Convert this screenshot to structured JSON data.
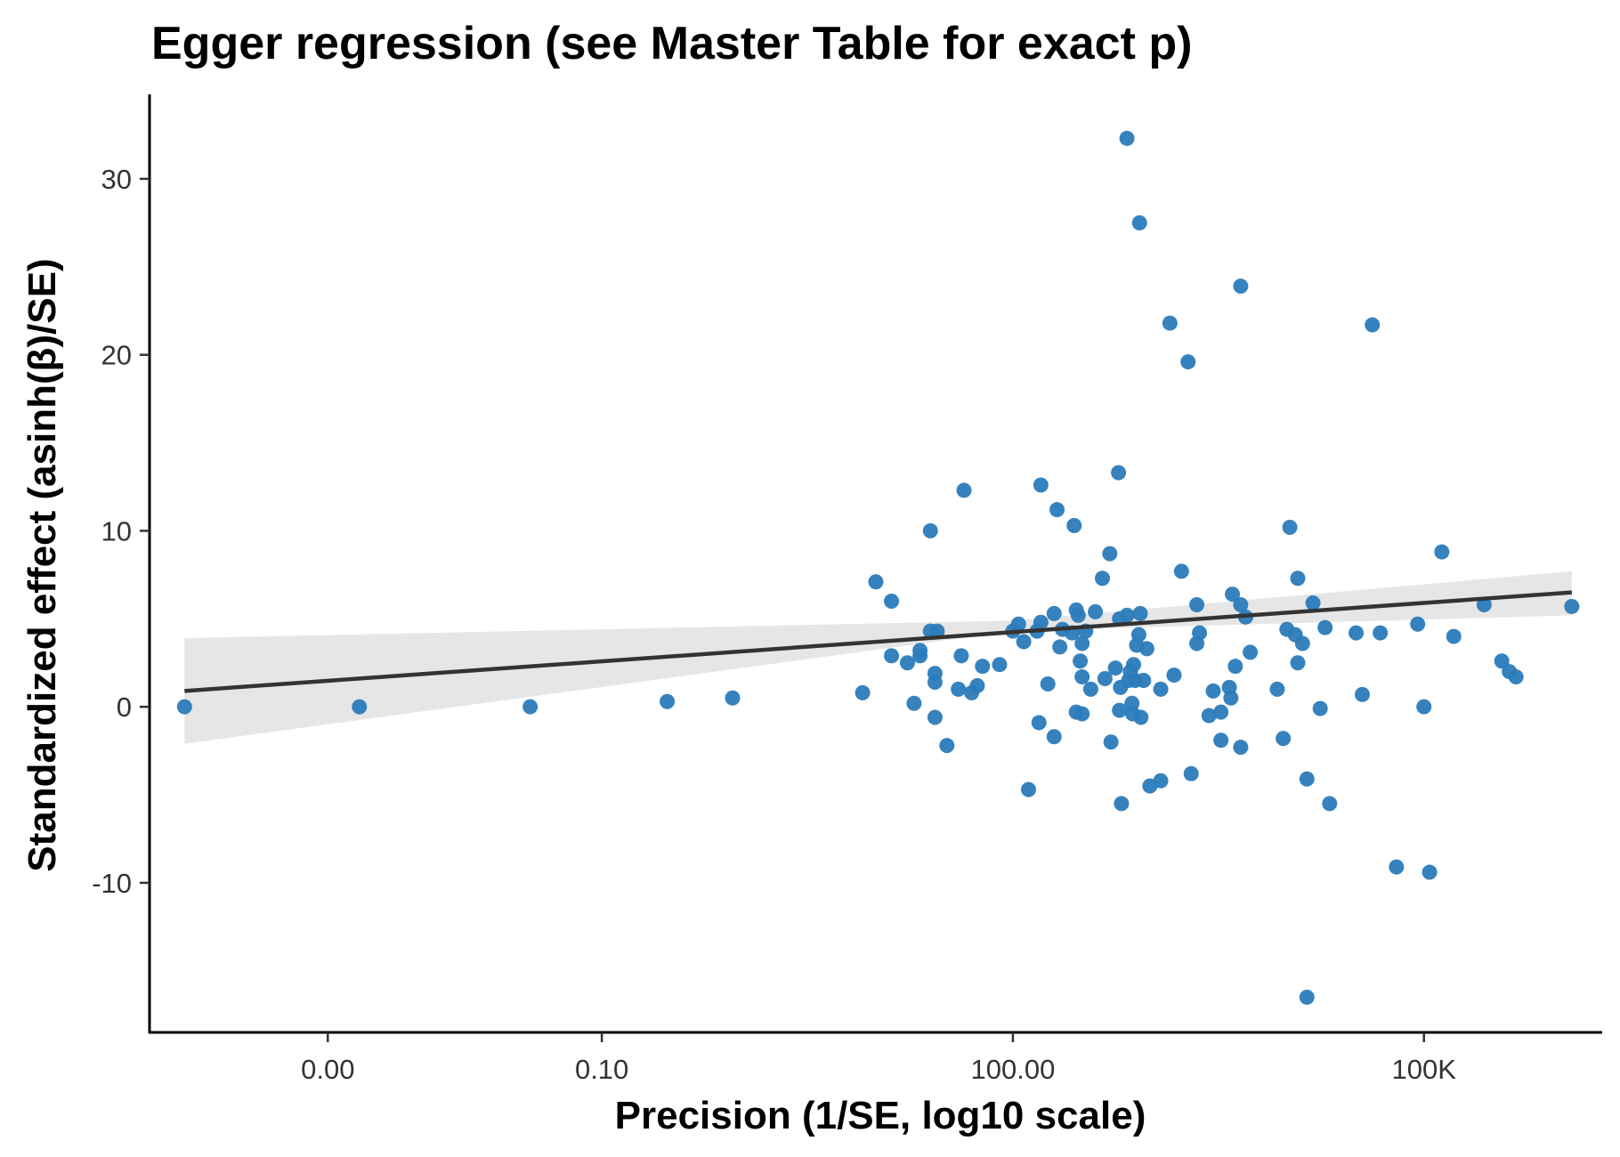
{
  "chart_data": {
    "type": "scatter",
    "title": "Egger regression (see Master Table for exact p)",
    "xlabel": "Precision (1/SE, log10 scale)",
    "ylabel": "Standardized effect (asinh(β)/SE)",
    "x_scale": "log10",
    "xlim": [
      5e-05,
      2000000
    ],
    "ylim": [
      -18.5,
      34.8
    ],
    "x_ticks": [
      {
        "value": 0.001,
        "label": "0.00"
      },
      {
        "value": 0.1,
        "label": "0.10"
      },
      {
        "value": 100,
        "label": "100.00"
      },
      {
        "value": 100000,
        "label": "100K"
      }
    ],
    "y_ticks": [
      {
        "value": 30,
        "label": "30"
      },
      {
        "value": 20,
        "label": "20"
      },
      {
        "value": 10,
        "label": "10"
      },
      {
        "value": 0,
        "label": "0"
      },
      {
        "value": -10,
        "label": "-10"
      }
    ],
    "grid": false,
    "legend": "none",
    "colors": {
      "points": "#2b7bba",
      "fit_line": "#333333",
      "ci_band": "#e6e6e6",
      "axis": "#000000"
    },
    "fit_line": {
      "x": [
        9e-05,
        1200000
      ],
      "y": [
        0.9,
        6.5
      ]
    },
    "ci_band": {
      "x": [
        9e-05,
        100,
        1200000
      ],
      "upper": [
        3.9,
        4.9,
        7.7
      ],
      "lower": [
        -2.1,
        4.3,
        5.2
      ]
    },
    "points": [
      {
        "x": 9e-05,
        "y": 0.0
      },
      {
        "x": 0.0017,
        "y": 0.0
      },
      {
        "x": 0.03,
        "y": 0.0
      },
      {
        "x": 0.3,
        "y": 0.3
      },
      {
        "x": 0.9,
        "y": 0.5
      },
      {
        "x": 8,
        "y": 0.8
      },
      {
        "x": 10,
        "y": 7.1
      },
      {
        "x": 13,
        "y": 6.0
      },
      {
        "x": 13,
        "y": 2.9
      },
      {
        "x": 17,
        "y": 2.5
      },
      {
        "x": 19,
        "y": 0.2
      },
      {
        "x": 21,
        "y": 3.2
      },
      {
        "x": 21,
        "y": 2.9
      },
      {
        "x": 25,
        "y": 10.0
      },
      {
        "x": 25,
        "y": 4.3
      },
      {
        "x": 28,
        "y": 4.3
      },
      {
        "x": 27,
        "y": 1.9
      },
      {
        "x": 27,
        "y": 1.4
      },
      {
        "x": 27,
        "y": -0.6
      },
      {
        "x": 33,
        "y": -2.2
      },
      {
        "x": 40,
        "y": 1.0
      },
      {
        "x": 42,
        "y": 2.9
      },
      {
        "x": 44,
        "y": 12.3
      },
      {
        "x": 50,
        "y": 0.8
      },
      {
        "x": 55,
        "y": 1.2
      },
      {
        "x": 60,
        "y": 2.3
      },
      {
        "x": 80,
        "y": 2.4
      },
      {
        "x": 100,
        "y": 4.3
      },
      {
        "x": 110,
        "y": 4.7
      },
      {
        "x": 120,
        "y": 3.7
      },
      {
        "x": 130,
        "y": -4.7
      },
      {
        "x": 150,
        "y": 4.3
      },
      {
        "x": 160,
        "y": 12.6
      },
      {
        "x": 160,
        "y": 4.8
      },
      {
        "x": 155,
        "y": -0.9
      },
      {
        "x": 180,
        "y": 1.3
      },
      {
        "x": 200,
        "y": 5.3
      },
      {
        "x": 210,
        "y": 11.2
      },
      {
        "x": 200,
        "y": -1.7
      },
      {
        "x": 220,
        "y": 3.4
      },
      {
        "x": 230,
        "y": 4.4
      },
      {
        "x": 280,
        "y": 10.3
      },
      {
        "x": 270,
        "y": 4.2
      },
      {
        "x": 290,
        "y": 5.5
      },
      {
        "x": 300,
        "y": 5.2
      },
      {
        "x": 290,
        "y": -0.3
      },
      {
        "x": 310,
        "y": 2.6
      },
      {
        "x": 320,
        "y": 3.6
      },
      {
        "x": 320,
        "y": 1.7
      },
      {
        "x": 320,
        "y": -0.4
      },
      {
        "x": 340,
        "y": 4.3
      },
      {
        "x": 370,
        "y": 1.0
      },
      {
        "x": 400,
        "y": 5.4
      },
      {
        "x": 450,
        "y": 7.3
      },
      {
        "x": 470,
        "y": 1.6
      },
      {
        "x": 510,
        "y": 8.7
      },
      {
        "x": 520,
        "y": -2.0
      },
      {
        "x": 560,
        "y": 2.2
      },
      {
        "x": 590,
        "y": 13.3
      },
      {
        "x": 600,
        "y": 5.0
      },
      {
        "x": 610,
        "y": 1.1
      },
      {
        "x": 600,
        "y": -0.2
      },
      {
        "x": 620,
        "y": -5.5
      },
      {
        "x": 680,
        "y": 32.3
      },
      {
        "x": 680,
        "y": 5.2
      },
      {
        "x": 700,
        "y": 1.5
      },
      {
        "x": 720,
        "y": 2.0
      },
      {
        "x": 740,
        "y": 0.2
      },
      {
        "x": 750,
        "y": -0.4
      },
      {
        "x": 760,
        "y": 2.4
      },
      {
        "x": 780,
        "y": 1.5
      },
      {
        "x": 800,
        "y": 3.5
      },
      {
        "x": 830,
        "y": 4.1
      },
      {
        "x": 840,
        "y": 27.5
      },
      {
        "x": 850,
        "y": 5.3
      },
      {
        "x": 860,
        "y": -0.6
      },
      {
        "x": 900,
        "y": 1.5
      },
      {
        "x": 950,
        "y": 3.3
      },
      {
        "x": 1000,
        "y": -4.5
      },
      {
        "x": 1200,
        "y": -4.2
      },
      {
        "x": 1200,
        "y": 1.0
      },
      {
        "x": 1400,
        "y": 21.8
      },
      {
        "x": 1500,
        "y": 1.8
      },
      {
        "x": 1700,
        "y": 7.7
      },
      {
        "x": 1900,
        "y": 19.6
      },
      {
        "x": 2000,
        "y": -3.8
      },
      {
        "x": 2200,
        "y": 5.8
      },
      {
        "x": 2200,
        "y": 3.6
      },
      {
        "x": 2300,
        "y": 4.2
      },
      {
        "x": 2700,
        "y": -0.5
      },
      {
        "x": 2900,
        "y": 0.9
      },
      {
        "x": 3300,
        "y": -0.3
      },
      {
        "x": 3300,
        "y": -1.9
      },
      {
        "x": 3800,
        "y": 1.1
      },
      {
        "x": 3900,
        "y": 0.5
      },
      {
        "x": 4000,
        "y": 6.4
      },
      {
        "x": 4200,
        "y": 2.3
      },
      {
        "x": 4600,
        "y": 23.9
      },
      {
        "x": 4600,
        "y": 5.8
      },
      {
        "x": 4600,
        "y": -2.3
      },
      {
        "x": 5000,
        "y": 5.1
      },
      {
        "x": 5400,
        "y": 3.1
      },
      {
        "x": 8500,
        "y": 1.0
      },
      {
        "x": 9400,
        "y": -1.8
      },
      {
        "x": 10000,
        "y": 4.4
      },
      {
        "x": 10500,
        "y": 10.2
      },
      {
        "x": 11500,
        "y": 4.1
      },
      {
        "x": 12000,
        "y": 2.5
      },
      {
        "x": 12000,
        "y": 7.3
      },
      {
        "x": 13000,
        "y": 3.6
      },
      {
        "x": 14000,
        "y": -4.1
      },
      {
        "x": 15500,
        "y": 5.9
      },
      {
        "x": 17500,
        "y": -0.1
      },
      {
        "x": 19000,
        "y": 4.5
      },
      {
        "x": 20500,
        "y": -5.5
      },
      {
        "x": 32000,
        "y": 4.2
      },
      {
        "x": 35500,
        "y": 0.7
      },
      {
        "x": 42000,
        "y": 21.7
      },
      {
        "x": 48000,
        "y": 4.2
      },
      {
        "x": 63000,
        "y": -9.1
      },
      {
        "x": 90000,
        "y": 4.7
      },
      {
        "x": 100000,
        "y": 0.0
      },
      {
        "x": 110000,
        "y": -9.4
      },
      {
        "x": 135000,
        "y": 8.8
      },
      {
        "x": 165000,
        "y": 4.0
      },
      {
        "x": 275000,
        "y": 5.8
      },
      {
        "x": 370000,
        "y": 2.6
      },
      {
        "x": 420000,
        "y": 2.0
      },
      {
        "x": 470000,
        "y": 1.7
      },
      {
        "x": 1200000,
        "y": 5.7
      },
      {
        "x": 14000,
        "y": -16.5
      }
    ]
  }
}
